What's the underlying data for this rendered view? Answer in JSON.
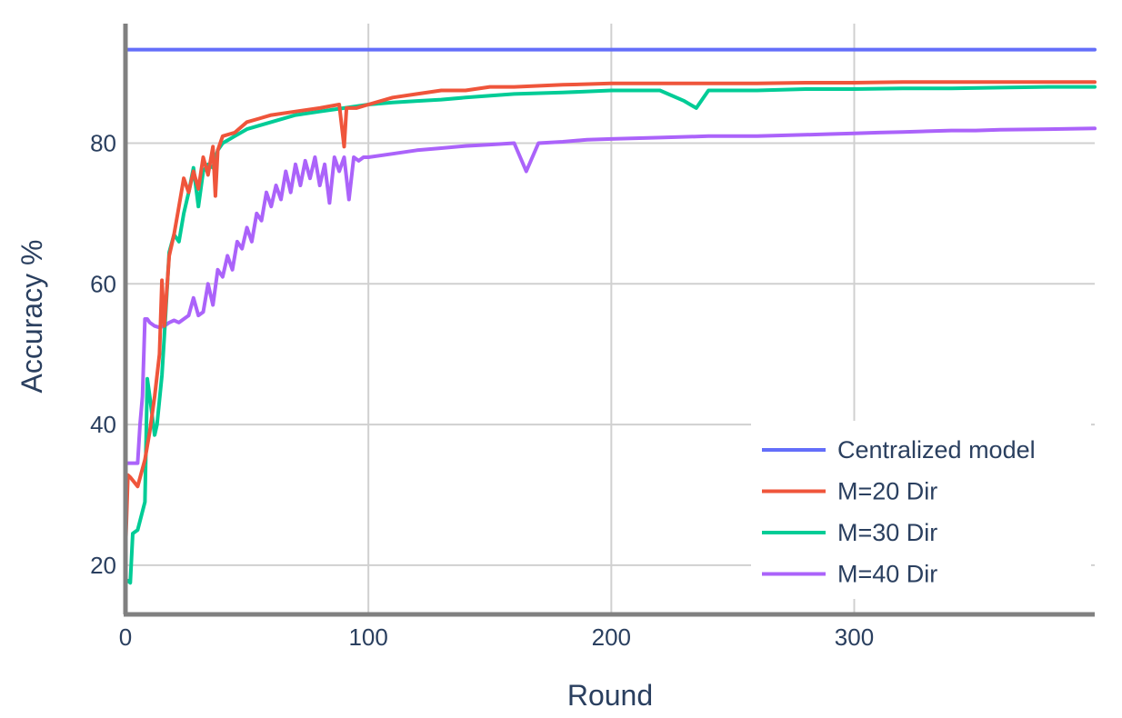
{
  "chart_data": {
    "type": "line",
    "title": "",
    "xlabel": "Round",
    "ylabel": "Accuracy %",
    "xlim": [
      0,
      399
    ],
    "ylim": [
      13,
      97
    ],
    "xticks": [
      0,
      100,
      200,
      300
    ],
    "yticks": [
      20,
      40,
      60,
      80
    ],
    "tick_labels": {
      "x": [
        "0",
        "100",
        "200",
        "300"
      ],
      "y": [
        "20",
        "40",
        "60",
        "80"
      ]
    },
    "grid": true,
    "legend_position": "bottom-right",
    "series": [
      {
        "name": "Centralized model",
        "color": "#636efa",
        "x": [
          0,
          399
        ],
        "y": [
          93.3,
          93.3
        ]
      },
      {
        "name": "M=20 Dir",
        "color": "#ef553b",
        "x": [
          0,
          1,
          2,
          5,
          8,
          10,
          12,
          14,
          15,
          16,
          18,
          20,
          22,
          24,
          26,
          28,
          30,
          32,
          34,
          36,
          37,
          38,
          40,
          45,
          50,
          55,
          60,
          70,
          80,
          88,
          90,
          91,
          92,
          95,
          100,
          110,
          120,
          130,
          140,
          150,
          160,
          180,
          200,
          220,
          240,
          260,
          280,
          300,
          320,
          340,
          360,
          380,
          399
        ],
        "y": [
          22,
          32.8,
          32.5,
          31.2,
          35,
          39,
          44,
          50,
          60.5,
          54,
          64,
          67,
          71,
          75,
          73,
          76,
          73.5,
          78,
          75.5,
          79.5,
          72.5,
          79,
          81,
          81.5,
          83,
          83.5,
          84,
          84.5,
          85,
          85.5,
          79.5,
          85,
          85,
          85,
          85.5,
          86.5,
          87,
          87.5,
          87.5,
          88,
          88,
          88.3,
          88.5,
          88.5,
          88.5,
          88.5,
          88.6,
          88.6,
          88.7,
          88.7,
          88.7,
          88.7,
          88.7
        ]
      },
      {
        "name": "M=30 Dir",
        "color": "#00cc96",
        "x": [
          0,
          1,
          2,
          3,
          5,
          8,
          9,
          10,
          12,
          13,
          15,
          16,
          18,
          20,
          22,
          24,
          26,
          28,
          30,
          32,
          34,
          36,
          38,
          40,
          45,
          50,
          55,
          60,
          70,
          80,
          90,
          100,
          110,
          120,
          130,
          140,
          160,
          180,
          200,
          220,
          230,
          235,
          240,
          260,
          280,
          300,
          320,
          340,
          360,
          380,
          399
        ],
        "y": [
          17.5,
          17.8,
          17.5,
          24.5,
          25,
          29,
          46.5,
          44,
          38.5,
          40,
          47,
          52.5,
          64.5,
          67,
          66,
          70,
          73,
          76.5,
          71,
          76,
          77,
          76.5,
          79,
          80,
          81,
          82,
          82.5,
          83,
          84,
          84.5,
          85,
          85.5,
          85.8,
          86,
          86.2,
          86.5,
          87,
          87.2,
          87.5,
          87.5,
          86,
          85,
          87.5,
          87.5,
          87.7,
          87.7,
          87.8,
          87.8,
          87.9,
          88,
          88
        ]
      },
      {
        "name": "M=40 Dir",
        "color": "#ab63fa",
        "x": [
          0,
          5,
          6,
          7,
          8,
          9,
          10,
          12,
          14,
          16,
          18,
          20,
          22,
          24,
          26,
          28,
          30,
          32,
          34,
          36,
          38,
          40,
          42,
          44,
          46,
          48,
          50,
          52,
          54,
          56,
          58,
          60,
          62,
          64,
          66,
          68,
          70,
          72,
          74,
          76,
          78,
          80,
          82,
          84,
          86,
          88,
          90,
          92,
          94,
          96,
          98,
          100,
          110,
          120,
          130,
          140,
          150,
          160,
          165,
          170,
          180,
          190,
          200,
          220,
          240,
          260,
          280,
          290,
          300,
          310,
          320,
          330,
          340,
          350,
          360,
          380,
          399
        ],
        "y": [
          34.5,
          34.5,
          40,
          44,
          55,
          55,
          54.5,
          54,
          53.8,
          54,
          54.5,
          54.8,
          54.5,
          55,
          55.5,
          58,
          55.5,
          56,
          60,
          57,
          62,
          61,
          64,
          62,
          66,
          65,
          68,
          66,
          70,
          69,
          73,
          71,
          74,
          72,
          76,
          73,
          77,
          74,
          77.5,
          75,
          78,
          74,
          77,
          71.5,
          78,
          76,
          78,
          72,
          78,
          77.5,
          78,
          78,
          78.5,
          79,
          79.3,
          79.6,
          79.8,
          80,
          76,
          80,
          80.2,
          80.5,
          80.6,
          80.8,
          81,
          81,
          81.2,
          81.3,
          81.4,
          81.5,
          81.6,
          81.7,
          81.8,
          81.8,
          81.9,
          82,
          82.1
        ]
      }
    ]
  }
}
